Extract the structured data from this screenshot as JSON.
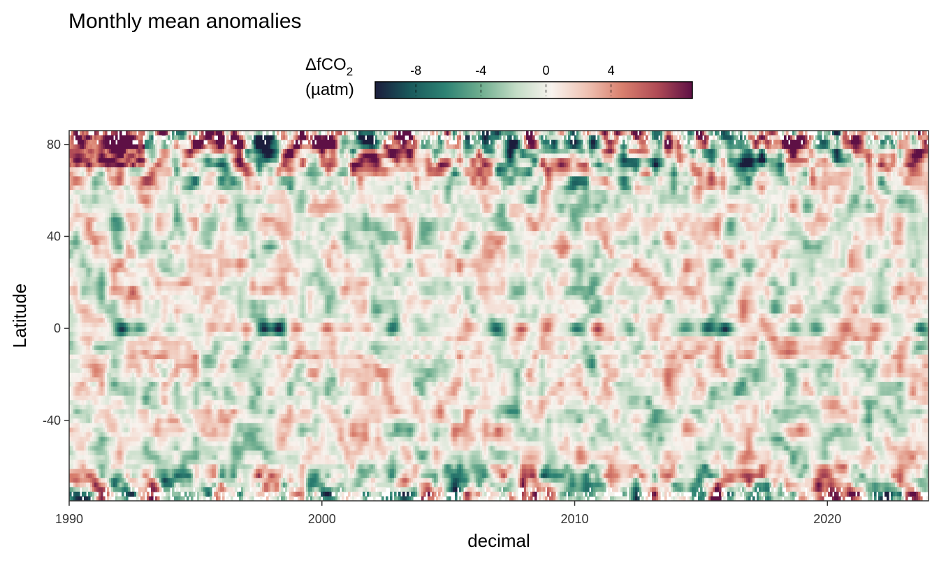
{
  "chart_data": {
    "type": "heatmap",
    "title": "Monthly mean anomalies",
    "xlabel": "decimal",
    "ylabel": "Latitude",
    "xlim": [
      1990,
      2024
    ],
    "ylim": [
      -75,
      86
    ],
    "x_ticks": [
      1990,
      2000,
      2010,
      2020
    ],
    "x_tick_labels": [
      "1990",
      "2000",
      "2010",
      "2020"
    ],
    "y_ticks": [
      80,
      40,
      0,
      -40
    ],
    "y_tick_labels": [
      "80",
      "40",
      "0",
      "-40"
    ],
    "legend": {
      "title_main": "ΔfCO",
      "title_sub": "2",
      "title_unit": "(µatm)",
      "range": [
        -10.5,
        9
      ],
      "ticks": [
        -8,
        -4,
        0,
        4
      ],
      "tick_labels": [
        "-8",
        "-4",
        "0",
        "4"
      ],
      "colormap": [
        "#1b1d3c",
        "#1a5a5c",
        "#2e8374",
        "#6fae8f",
        "#c3dcc6",
        "#f8f3ee",
        "#efc3b4",
        "#d9806e",
        "#b04b55",
        "#5e1045"
      ],
      "placement": "top"
    },
    "grid": false,
    "equatorial_events": [
      {
        "year": 1992.1,
        "value": -9
      },
      {
        "year": 1992.8,
        "value": -6
      },
      {
        "year": 1994.0,
        "value": -4
      },
      {
        "year": 1995.7,
        "value": 3
      },
      {
        "year": 1996.3,
        "value": 4
      },
      {
        "year": 1997.0,
        "value": 4
      },
      {
        "year": 1997.7,
        "value": -10
      },
      {
        "year": 1998.3,
        "value": -10
      },
      {
        "year": 1999.0,
        "value": 6
      },
      {
        "year": 2000.2,
        "value": 6
      },
      {
        "year": 2001.0,
        "value": 5
      },
      {
        "year": 2001.8,
        "value": 4
      },
      {
        "year": 2002.8,
        "value": -7
      },
      {
        "year": 2004.0,
        "value": -3
      },
      {
        "year": 2005.8,
        "value": 4
      },
      {
        "year": 2006.9,
        "value": -8
      },
      {
        "year": 2007.9,
        "value": 7
      },
      {
        "year": 2008.9,
        "value": 5
      },
      {
        "year": 2010.1,
        "value": -8
      },
      {
        "year": 2010.9,
        "value": 7
      },
      {
        "year": 2012.2,
        "value": -4
      },
      {
        "year": 2013.2,
        "value": 3
      },
      {
        "year": 2014.4,
        "value": -6
      },
      {
        "year": 2015.3,
        "value": -8
      },
      {
        "year": 2016.0,
        "value": -10
      },
      {
        "year": 2017.6,
        "value": 3
      },
      {
        "year": 2018.7,
        "value": -5
      },
      {
        "year": 2019.6,
        "value": -6
      },
      {
        "year": 2020.7,
        "value": 5
      },
      {
        "year": 2021.9,
        "value": 5
      },
      {
        "year": 2023.7,
        "value": -9
      }
    ]
  }
}
